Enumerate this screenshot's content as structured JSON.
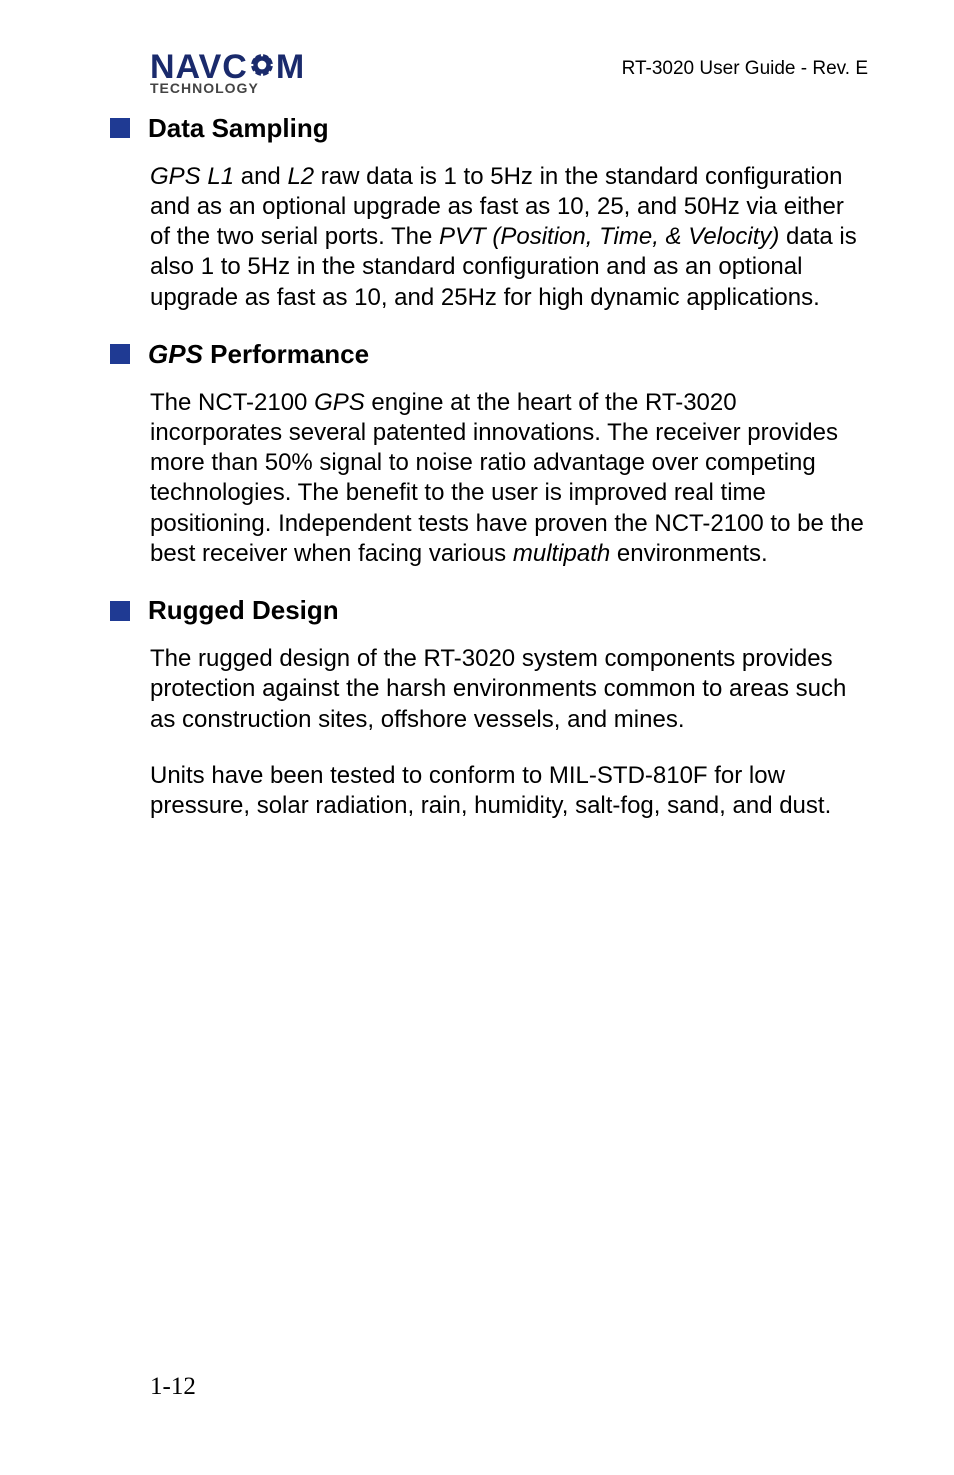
{
  "header": {
    "logo_top_left": "NAVC",
    "logo_top_right": "M",
    "logo_bottom": "TECHNOLOGY",
    "doc_ref": "RT-3020 User Guide - Rev. E"
  },
  "sections": [
    {
      "title_plain": "Data Sampling",
      "title_italic": "",
      "title_order": "plain",
      "paragraphs": [
        "<span class=\"ital\">GPS L1</span> and <span class=\"ital\">L2</span> raw data is 1 to 5Hz in the standard configuration and as an optional upgrade as fast as 10, 25, and 50Hz via either of the two serial ports. The <span class=\"ital\">PVT (Position, Time, &amp; Velocity)</span> data is also 1 to 5Hz in the standard configuration and as an optional upgrade as fast as 10, and 25Hz for high dynamic applications."
      ]
    },
    {
      "title_plain": " Performance",
      "title_italic": "GPS",
      "title_order": "italic-first",
      "paragraphs": [
        "The NCT-2100 <span class=\"ital\">GPS</span> engine at the heart of the RT-3020 incorporates several patented innovations. The receiver provides more than 50% signal to noise ratio advantage over competing technologies. The benefit to the user is improved real time positioning. Independent tests have proven the NCT-2100 to be the best receiver when facing various <span class=\"ital\">multipath</span> environments."
      ]
    },
    {
      "title_plain": "Rugged Design",
      "title_italic": "",
      "title_order": "plain",
      "paragraphs": [
        "The rugged design of the RT-3020 system components provides protection against the harsh environments common to areas such as construction sites, offshore vessels, and mines.",
        "Units have been tested to conform to MIL-STD-810F for low pressure, solar radiation, rain, humidity, salt-fog, sand, and dust."
      ]
    }
  ],
  "page_number": "1-12",
  "colors": {
    "bullet": "#1f3a93",
    "logo_primary": "#1a2a6c",
    "logo_secondary": "#444444",
    "text": "#000000",
    "background": "#ffffff"
  },
  "fonts": {
    "body_family": "Lucida Sans",
    "body_size_pt": 18,
    "title_size_pt": 20,
    "header_family": "Arial",
    "pagenum_family": "Times New Roman"
  }
}
